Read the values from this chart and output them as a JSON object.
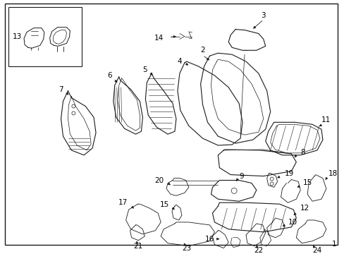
{
  "bg_color": "#ffffff",
  "line_color": "#1a1a1a",
  "text_color": "#000000",
  "fig_number": "1",
  "figsize": [
    4.89,
    3.6
  ],
  "dpi": 100
}
